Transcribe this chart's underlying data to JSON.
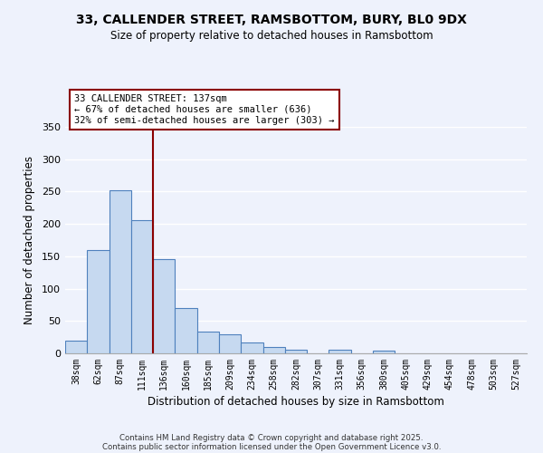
{
  "title": "33, CALLENDER STREET, RAMSBOTTOM, BURY, BL0 9DX",
  "subtitle": "Size of property relative to detached houses in Ramsbottom",
  "xlabel": "Distribution of detached houses by size in Ramsbottom",
  "ylabel": "Number of detached properties",
  "categories": [
    "38sqm",
    "62sqm",
    "87sqm",
    "111sqm",
    "136sqm",
    "160sqm",
    "185sqm",
    "209sqm",
    "234sqm",
    "258sqm",
    "282sqm",
    "307sqm",
    "331sqm",
    "356sqm",
    "380sqm",
    "405sqm",
    "429sqm",
    "454sqm",
    "478sqm",
    "503sqm",
    "527sqm"
  ],
  "values": [
    20,
    160,
    252,
    206,
    145,
    70,
    34,
    30,
    17,
    10,
    6,
    0,
    6,
    0,
    4,
    0,
    0,
    0,
    0,
    0,
    0
  ],
  "bar_color": "#c6d9f0",
  "bar_edge_color": "#4f81bd",
  "vline_index": 3.5,
  "vline_color": "#8b0000",
  "annotation_title": "33 CALLENDER STREET: 137sqm",
  "annotation_line1": "← 67% of detached houses are smaller (636)",
  "annotation_line2": "32% of semi-detached houses are larger (303) →",
  "annotation_box_color": "#8b0000",
  "ylim": [
    0,
    350
  ],
  "yticks": [
    0,
    50,
    100,
    150,
    200,
    250,
    300,
    350
  ],
  "footer1": "Contains HM Land Registry data © Crown copyright and database right 2025.",
  "footer2": "Contains public sector information licensed under the Open Government Licence v3.0.",
  "background_color": "#eef2fc",
  "grid_color": "#ffffff"
}
